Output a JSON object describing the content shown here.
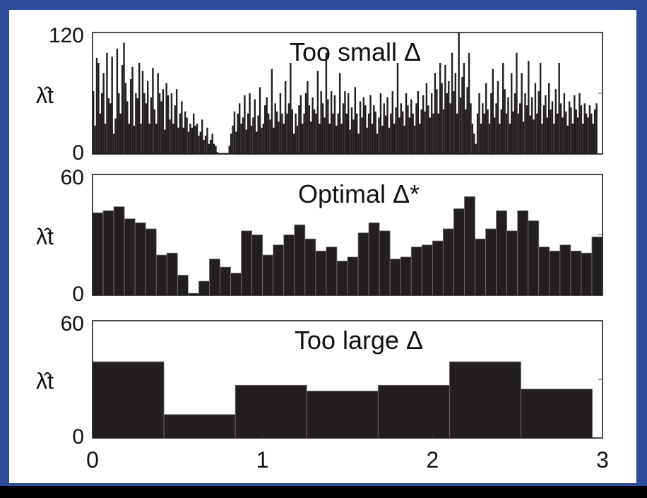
{
  "chart_data": [
    {
      "type": "bar",
      "title": "Too small Δ",
      "ylabel": "λ̂t",
      "ylim": [
        0,
        120
      ],
      "yticks": [
        "0",
        "120"
      ],
      "xlim": [
        0,
        3
      ],
      "xticks": [],
      "bin_width": 0.01,
      "values": [
        62,
        28,
        95,
        90,
        40,
        60,
        80,
        30,
        100,
        55,
        50,
        96,
        20,
        35,
        104,
        60,
        40,
        88,
        110,
        70,
        52,
        30,
        74,
        86,
        28,
        60,
        55,
        90,
        30,
        82,
        60,
        50,
        72,
        30,
        56,
        85,
        44,
        30,
        80,
        60,
        52,
        64,
        24,
        70,
        58,
        34,
        60,
        30,
        48,
        64,
        26,
        40,
        52,
        26,
        42,
        36,
        22,
        30,
        26,
        40,
        28,
        30,
        18,
        22,
        34,
        14,
        18,
        26,
        10,
        14,
        20,
        10,
        8,
        2,
        1,
        1,
        1,
        1,
        1,
        1,
        8,
        20,
        28,
        42,
        22,
        40,
        50,
        30,
        36,
        58,
        24,
        40,
        60,
        28,
        36,
        54,
        22,
        38,
        66,
        26,
        30,
        48,
        56,
        40,
        34,
        84,
        26,
        50,
        42,
        32,
        60,
        40,
        30,
        72,
        40,
        50,
        90,
        44,
        20,
        40,
        28,
        48,
        58,
        30,
        40,
        60,
        72,
        48,
        32,
        56,
        44,
        40,
        82,
        30,
        62,
        50,
        36,
        100,
        54,
        30,
        62,
        40,
        58,
        28,
        40,
        80,
        30,
        50,
        62,
        40,
        60,
        24,
        46,
        34,
        66,
        40,
        20,
        52,
        36,
        56,
        48,
        26,
        40,
        58,
        30,
        48,
        42,
        20,
        36,
        60,
        28,
        50,
        38,
        56,
        26,
        40,
        62,
        30,
        46,
        90,
        36,
        50,
        42,
        28,
        60,
        48,
        36,
        54,
        40,
        28,
        50,
        62,
        30,
        44,
        58,
        42,
        70,
        48,
        36,
        60,
        40,
        80,
        64,
        40,
        90,
        70,
        44,
        88,
        60,
        72,
        50,
        100,
        62,
        80,
        40,
        120,
        56,
        76,
        90,
        44,
        66,
        100,
        50,
        30,
        20,
        10,
        40,
        60,
        30,
        50,
        40,
        70,
        44,
        30,
        60,
        84,
        36,
        50,
        72,
        30,
        44,
        90,
        64,
        40,
        56,
        30,
        80,
        42,
        60,
        100,
        40,
        50,
        80,
        32,
        60,
        48,
        92,
        38,
        56,
        34,
        70,
        40,
        62,
        90,
        30,
        48,
        58,
        36,
        70,
        44,
        52,
        30,
        64,
        40,
        90,
        50,
        36,
        60,
        42,
        28,
        52,
        46,
        30,
        58,
        44,
        36,
        60,
        48,
        30,
        50,
        40,
        36,
        48,
        40,
        30,
        44,
        50
      ]
    },
    {
      "type": "bar",
      "title": "Optimal Δ*",
      "ylabel": "λ̂t",
      "ylim": [
        0,
        60
      ],
      "yticks": [
        "0",
        "60"
      ],
      "xlim": [
        0,
        3
      ],
      "xticks": [],
      "bin_width": 0.0625,
      "values": [
        41,
        42,
        44,
        38,
        36,
        33,
        20,
        21,
        10,
        1,
        7,
        18,
        14,
        11,
        32,
        30,
        20,
        25,
        30,
        35,
        28,
        22,
        24,
        17,
        19,
        31,
        36,
        32,
        18,
        19,
        24,
        25,
        27,
        33,
        43,
        49,
        28,
        33,
        42,
        32,
        42,
        37,
        24,
        22,
        25,
        22,
        21,
        29
      ]
    },
    {
      "type": "bar",
      "title": "Too large Δ",
      "ylabel": "λ̂t",
      "ylim": [
        0,
        60
      ],
      "yticks": [
        "0",
        "60"
      ],
      "xlim": [
        0,
        3
      ],
      "xticks": [
        "0",
        "1",
        "2",
        "3"
      ],
      "bin_width": 0.42,
      "values": [
        39,
        12,
        27,
        24,
        27,
        39,
        25
      ]
    }
  ]
}
